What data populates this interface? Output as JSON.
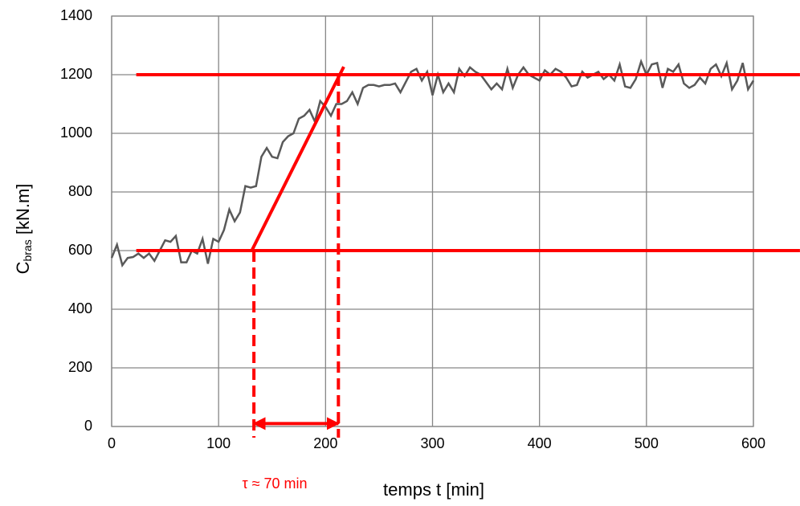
{
  "chart_data": {
    "type": "line",
    "ylabel": {
      "main": "C",
      "sub": "bras",
      "rest": " [kN.m]"
    },
    "xlabel": "temps t [min]",
    "annotation": "τ ≈ 70 min",
    "xlim": [
      0,
      600
    ],
    "ylim": [
      0,
      1400
    ],
    "xticks": [
      0,
      100,
      200,
      300,
      400,
      500,
      600
    ],
    "yticks": [
      0,
      200,
      400,
      600,
      800,
      1000,
      1200,
      1400
    ],
    "grid": true,
    "series": [
      {
        "color": "#595959",
        "x": [
          0,
          5,
          10,
          15,
          20,
          25,
          30,
          35,
          40,
          45,
          50,
          55,
          60,
          65,
          70,
          75,
          80,
          85,
          90,
          95,
          100,
          105,
          110,
          115,
          120,
          125,
          130,
          135,
          140,
          145,
          150,
          155,
          160,
          165,
          170,
          175,
          180,
          185,
          190,
          195,
          200,
          205,
          210,
          215,
          220,
          225,
          230,
          235,
          240,
          245,
          250,
          255,
          260,
          265,
          270,
          275,
          280,
          285,
          290,
          295,
          300,
          305,
          310,
          315,
          320,
          325,
          330,
          335,
          340,
          345,
          350,
          355,
          360,
          365,
          370,
          375,
          380,
          385,
          390,
          395,
          400,
          405,
          410,
          415,
          420,
          425,
          430,
          435,
          440,
          445,
          450,
          455,
          460,
          465,
          470,
          475,
          480,
          485,
          490,
          495,
          500,
          505,
          510,
          515,
          520,
          525,
          530,
          535,
          540,
          545,
          550,
          555,
          560,
          565,
          570,
          575,
          580,
          585,
          590,
          595,
          600
        ],
        "values": [
          575,
          620,
          550,
          575,
          578,
          590,
          575,
          590,
          565,
          600,
          635,
          630,
          650,
          560,
          560,
          600,
          590,
          640,
          555,
          640,
          630,
          670,
          740,
          700,
          730,
          820,
          815,
          820,
          920,
          950,
          920,
          915,
          970,
          990,
          1000,
          1050,
          1060,
          1080,
          1040,
          1110,
          1090,
          1060,
          1100,
          1100,
          1110,
          1140,
          1100,
          1155,
          1165,
          1165,
          1160,
          1165,
          1165,
          1170,
          1140,
          1175,
          1210,
          1220,
          1180,
          1210,
          1130,
          1200,
          1140,
          1170,
          1140,
          1220,
          1195,
          1225,
          1210,
          1200,
          1175,
          1150,
          1170,
          1150,
          1220,
          1155,
          1200,
          1225,
          1200,
          1190,
          1180,
          1215,
          1200,
          1220,
          1210,
          1190,
          1160,
          1165,
          1210,
          1190,
          1200,
          1210,
          1185,
          1200,
          1180,
          1235,
          1160,
          1155,
          1185,
          1245,
          1200,
          1235,
          1240,
          1155,
          1220,
          1210,
          1235,
          1170,
          1155,
          1165,
          1190,
          1170,
          1220,
          1235,
          1195,
          1240,
          1150,
          1180,
          1240,
          1150,
          1180
        ]
      }
    ],
    "reference_lines": [
      {
        "color": "#ff0000",
        "x": [
          23,
          643.5
        ],
        "y": [
          1200,
          1200
        ]
      },
      {
        "color": "#ff0000",
        "x": [
          23,
          643.5
        ],
        "y": [
          600,
          600
        ]
      },
      {
        "color": "#ff0000",
        "x": [
          131,
          217
        ],
        "y": [
          600,
          1227
        ]
      }
    ],
    "dashed_lines": [
      {
        "color": "#ff0000",
        "x": [
          133,
          133
        ],
        "y": [
          600,
          -38
        ]
      },
      {
        "color": "#ff0000",
        "x": [
          212,
          212
        ],
        "y": [
          1200,
          -38
        ]
      }
    ],
    "arrow": {
      "color": "#ff0000",
      "x": [
        133,
        212
      ],
      "y": [
        10,
        10
      ]
    }
  }
}
